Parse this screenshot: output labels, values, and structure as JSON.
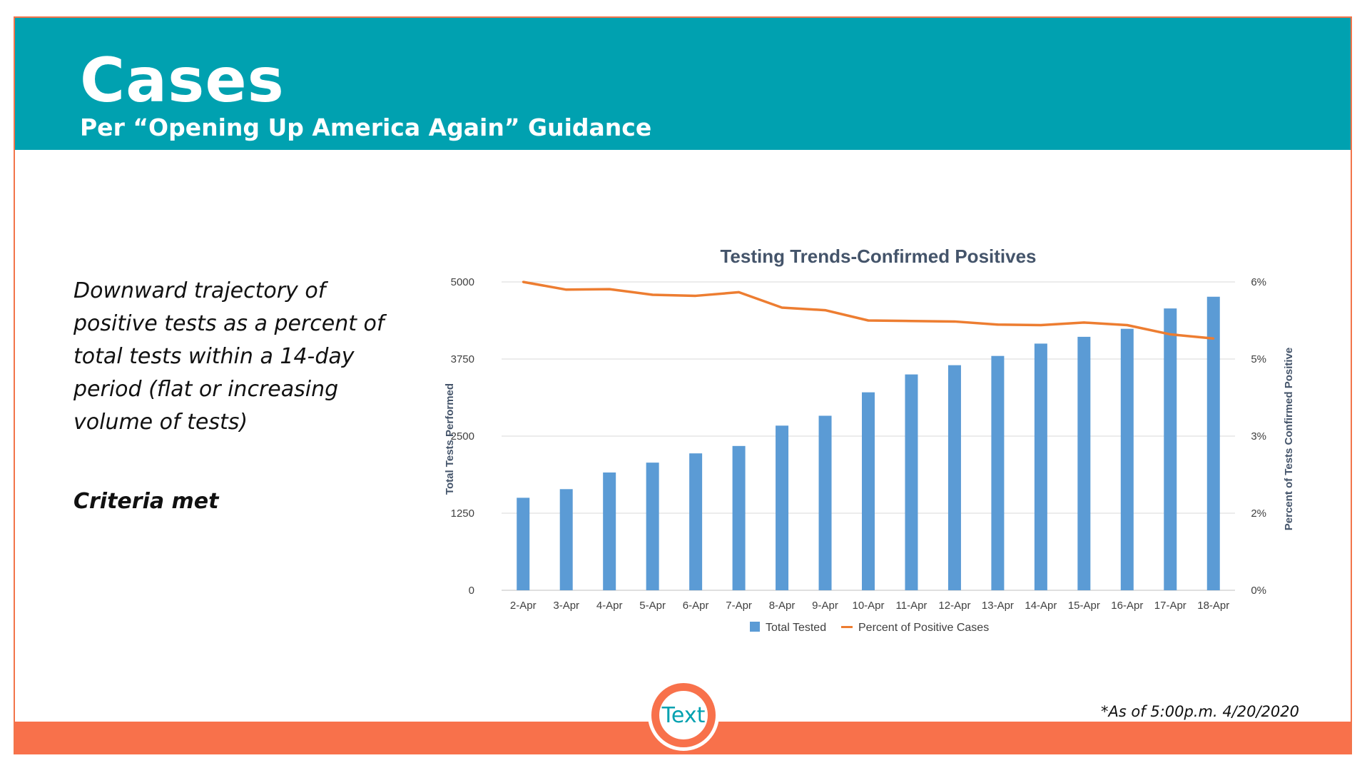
{
  "header": {
    "title": "Cases",
    "subtitle": "Per “Opening Up America Again” Guidance"
  },
  "body": {
    "description": "Downward trajectory of positive tests as a percent of total tests within a 14-day period (flat or increasing volume of tests)",
    "criteria": "Criteria met"
  },
  "footnote": "*As of 5:00p.m. 4/20/2020",
  "logo": {
    "label": "Text"
  },
  "colors": {
    "header": "#00a1b0",
    "accent": "#f8714b",
    "bar": "#5b9bd5",
    "line": "#ed7d31"
  },
  "chart_data": {
    "type": "bar",
    "title": "Testing Trends-Confirmed Positives",
    "categories": [
      "2-Apr",
      "3-Apr",
      "4-Apr",
      "5-Apr",
      "6-Apr",
      "7-Apr",
      "8-Apr",
      "9-Apr",
      "10-Apr",
      "11-Apr",
      "12-Apr",
      "13-Apr",
      "14-Apr",
      "15-Apr",
      "16-Apr",
      "17-Apr",
      "18-Apr"
    ],
    "series": [
      {
        "name": "Total Tested",
        "type": "bar",
        "axis": "left",
        "values": [
          1500,
          1640,
          1910,
          2070,
          2220,
          2340,
          2670,
          2830,
          3210,
          3500,
          3650,
          3800,
          4000,
          4110,
          4240,
          4570,
          4760
        ]
      },
      {
        "name": "Percent of Positive Cases",
        "type": "line",
        "axis": "right",
        "values": [
          6.0,
          5.85,
          5.86,
          5.75,
          5.73,
          5.8,
          5.5,
          5.45,
          5.25,
          5.24,
          5.23,
          5.17,
          5.16,
          5.21,
          5.16,
          4.98,
          4.9
        ]
      }
    ],
    "ylabel": "Total Tests Performed",
    "y2label": "Percent of Tests Confirmed Positive",
    "ylim": [
      0,
      5000
    ],
    "y2lim": [
      0,
      6
    ],
    "yticks": [
      "0",
      "1250",
      "2500",
      "3750",
      "5000"
    ],
    "y2ticks": [
      "0%",
      "2%",
      "3%",
      "5%",
      "6%"
    ],
    "grid": true,
    "legend": "bottom"
  }
}
